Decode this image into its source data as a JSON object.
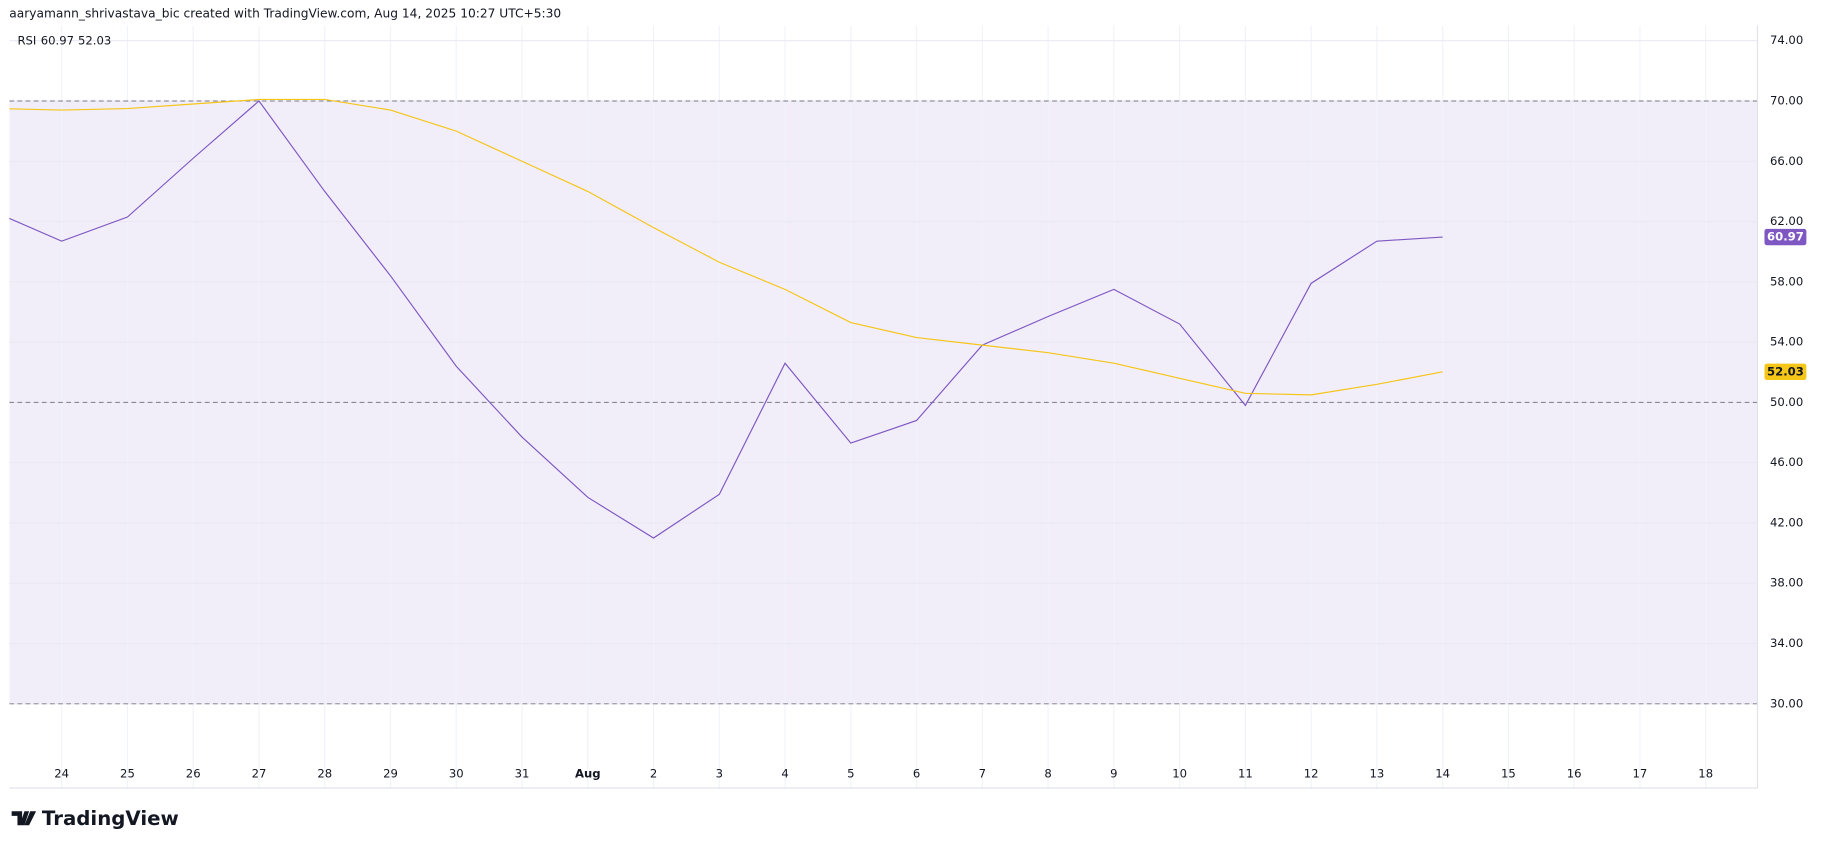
{
  "header": {
    "credit": "aaryamann_shrivastava_bic created with TradingView.com, Aug 14, 2025 10:27 UTC+5:30"
  },
  "chart_data": {
    "type": "line",
    "indicator": "RSI",
    "categories": [
      null,
      "24",
      "25",
      "26",
      "27",
      "28",
      "29",
      "30",
      "31",
      "Aug",
      "2",
      "3",
      "4",
      "5",
      "6",
      "7",
      "8",
      "9",
      "10",
      "11",
      "12",
      "13",
      "14",
      "15",
      "16",
      "17",
      "18"
    ],
    "series": [
      {
        "color": "#7e57c2",
        "last_label": "60.97",
        "values": [
          62.6,
          60.7,
          62.3,
          66.2,
          70.0,
          64.0,
          58.4,
          52.4,
          47.7,
          43.7,
          41.0,
          43.9,
          52.6,
          47.3,
          48.8,
          53.8,
          55.7,
          57.5,
          55.2,
          49.8,
          57.9,
          60.7,
          60.97,
          null,
          null,
          null,
          null
        ]
      },
      {
        "color": "#f5c518",
        "last_label": "52.03",
        "values": [
          69.5,
          69.4,
          69.5,
          69.8,
          70.1,
          70.1,
          69.4,
          68.0,
          66.0,
          64.0,
          61.6,
          59.3,
          57.5,
          55.3,
          54.3,
          53.8,
          53.3,
          52.6,
          51.6,
          50.6,
          50.5,
          51.2,
          52.03,
          null,
          null,
          null,
          null
        ]
      }
    ],
    "ylim": [
      26.5,
      75
    ],
    "yticks": [
      {
        "value": 30,
        "label": "30.00"
      },
      {
        "value": 34,
        "label": "34.00"
      },
      {
        "value": 38,
        "label": "38.00"
      },
      {
        "value": 42,
        "label": "42.00"
      },
      {
        "value": 46,
        "label": "46.00"
      },
      {
        "value": 50,
        "label": "50.00"
      },
      {
        "value": 54,
        "label": "54.00"
      },
      {
        "value": 58,
        "label": "58.00"
      },
      {
        "value": 62,
        "label": "62.00"
      },
      {
        "value": 66,
        "label": "66.00"
      },
      {
        "value": 70,
        "label": "70.00"
      },
      {
        "value": 74,
        "label": "74.00"
      }
    ],
    "levels": [
      70,
      50,
      30
    ],
    "band_color": "#7e57c2",
    "grid": true
  },
  "footer": {
    "logo": "TradingView"
  }
}
